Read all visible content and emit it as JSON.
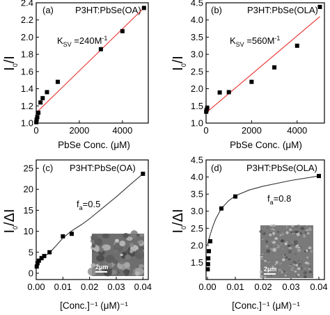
{
  "chart_data": [
    {
      "type": "scatter",
      "panel_label": "(a)",
      "title": "P3HT:PbSe(OA)",
      "annotation": {
        "main": "K",
        "sub": "SV",
        "rest": " =240M",
        "sup": "-1"
      },
      "xlabel": "PbSe Conc. (μM)",
      "ylabel": {
        "main": "I",
        "sub": "0",
        "rest": "/I"
      },
      "xlim": [
        0,
        5200
      ],
      "ylim": [
        1.0,
        2.4
      ],
      "xticks": [
        "0",
        "2000",
        "4000"
      ],
      "yticks": [
        "1.0",
        "1.2",
        "1.4",
        "1.6",
        "1.8",
        "2.0",
        "2.2",
        "2.4"
      ],
      "xtick_values": [
        0,
        2000,
        4000
      ],
      "ytick_values": [
        1.0,
        1.2,
        1.4,
        1.6,
        1.8,
        2.0,
        2.2,
        2.4
      ],
      "series": [
        {
          "x": [
            5,
            20,
            50,
            100,
            200,
            300,
            500,
            1000,
            3000,
            4000,
            5000
          ],
          "y": [
            1.01,
            1.04,
            1.07,
            1.12,
            1.24,
            1.29,
            1.36,
            1.48,
            1.86,
            2.07,
            2.34
          ]
        }
      ],
      "fit": {
        "x": [
          0,
          5000
        ],
        "y": [
          1.12,
          2.34
        ],
        "color": "#e8312f"
      },
      "grid": false
    },
    {
      "type": "scatter",
      "panel_label": "(b)",
      "title": "P3HT:PbSe(OLA)",
      "annotation": {
        "main": "K",
        "sub": "SV",
        "rest": " =560M",
        "sup": "-1"
      },
      "xlabel": "PbSe Conc. (μM)",
      "ylabel": {
        "main": "I",
        "sub": "0",
        "rest": "/I"
      },
      "xlim": [
        0,
        5200
      ],
      "ylim": [
        1.0,
        4.5
      ],
      "xticks": [
        "0",
        "2000",
        "4000"
      ],
      "yticks": [
        "1.0",
        "1.5",
        "2.0",
        "2.5",
        "3.0",
        "3.5",
        "4.0",
        "4.5"
      ],
      "xtick_values": [
        0,
        2000,
        4000
      ],
      "ytick_values": [
        1.0,
        1.5,
        2.0,
        2.5,
        3.0,
        3.5,
        4.0,
        4.5
      ],
      "series": [
        {
          "x": [
            5,
            20,
            50,
            600,
            1000,
            2000,
            3000,
            4000,
            5000
          ],
          "y": [
            1.33,
            1.38,
            1.44,
            1.89,
            1.9,
            2.2,
            2.62,
            3.25,
            4.38
          ]
        }
      ],
      "fit": {
        "x": [
          0,
          5000
        ],
        "y": [
          1.3,
          4.1
        ],
        "color": "#e8312f"
      },
      "grid": false
    },
    {
      "type": "scatter",
      "panel_label": "(c)",
      "title": "P3HT:PbSe(OA)",
      "annotation": {
        "main": "f",
        "sub": "a",
        "rest": "=0.5",
        "sup": ""
      },
      "xlabel": "[Conc.]⁻¹ (μM)⁻¹",
      "ylabel": {
        "main": "I",
        "sub": "0",
        "rest": "/ΔI"
      },
      "xlim": [
        0,
        0.042
      ],
      "ylim": [
        -1.5,
        27
      ],
      "xticks": [
        "0.00",
        "0.01",
        "0.02",
        "0.03",
        "0.04"
      ],
      "yticks": [
        "0",
        "5",
        "10",
        "15",
        "20",
        "25"
      ],
      "xtick_values": [
        0,
        0.01,
        0.02,
        0.03,
        0.04
      ],
      "ytick_values": [
        0,
        5,
        10,
        15,
        20,
        25
      ],
      "series": [
        {
          "x": [
            0.0002,
            0.0005,
            0.001,
            0.002,
            0.003,
            0.005,
            0.01,
            0.0133,
            0.04
          ],
          "y": [
            1.6,
            2.4,
            3.0,
            3.6,
            4.1,
            5.0,
            8.8,
            9.4,
            23.7
          ]
        }
      ],
      "fit": {
        "x": [
          0,
          0.001,
          0.002,
          0.003,
          0.005,
          0.0075,
          0.01,
          0.0133,
          0.017,
          0.02,
          0.025,
          0.03,
          0.035,
          0.04
        ],
        "y": [
          1.8,
          2.9,
          3.5,
          4.0,
          4.9,
          6.6,
          8.4,
          10.1,
          11.6,
          13.0,
          15.6,
          18.2,
          21.0,
          23.7
        ],
        "color": "#333333"
      },
      "inset": {
        "scale_label": "2μm",
        "texture": "coarse"
      },
      "grid": false
    },
    {
      "type": "scatter",
      "panel_label": "(d)",
      "title": "P3HT:PbSe(OLA)",
      "annotation": {
        "main": "f",
        "sub": "a",
        "rest": "=0.8",
        "sup": ""
      },
      "xlabel": "[Conc.]⁻¹ (μM)⁻¹",
      "ylabel": {
        "main": "I",
        "sub": "0",
        "rest": "/ΔI"
      },
      "xlim": [
        -0.0005,
        0.042
      ],
      "ylim": [
        1.0,
        4.5
      ],
      "xticks": [
        "0.00",
        "0.01",
        "0.02",
        "0.03",
        "0.04"
      ],
      "yticks": [
        "1.5",
        "2.0",
        "2.5",
        "3.0",
        "3.5",
        "4.0",
        "4.5"
      ],
      "xtick_values": [
        0,
        0.01,
        0.02,
        0.03,
        0.04
      ],
      "ytick_values": [
        1.5,
        2.0,
        2.5,
        3.0,
        3.5,
        4.0,
        4.5
      ],
      "series": [
        {
          "x": [
            0.0001,
            0.0002,
            0.0003,
            0.0005,
            0.001,
            0.005,
            0.01,
            0.04
          ],
          "y": [
            1.3,
            1.45,
            1.62,
            1.83,
            2.12,
            3.08,
            3.43,
            4.03
          ]
        }
      ],
      "fit": {
        "x": [
          0,
          0.001,
          0.002,
          0.003,
          0.005,
          0.0075,
          0.01,
          0.015,
          0.02,
          0.03,
          0.04
        ],
        "y": [
          2.02,
          2.32,
          2.57,
          2.78,
          3.08,
          3.3,
          3.45,
          3.62,
          3.73,
          3.9,
          4.03
        ],
        "color": "#333333"
      },
      "inset": {
        "scale_label": "2μm",
        "texture": "fine"
      },
      "grid": false
    }
  ]
}
